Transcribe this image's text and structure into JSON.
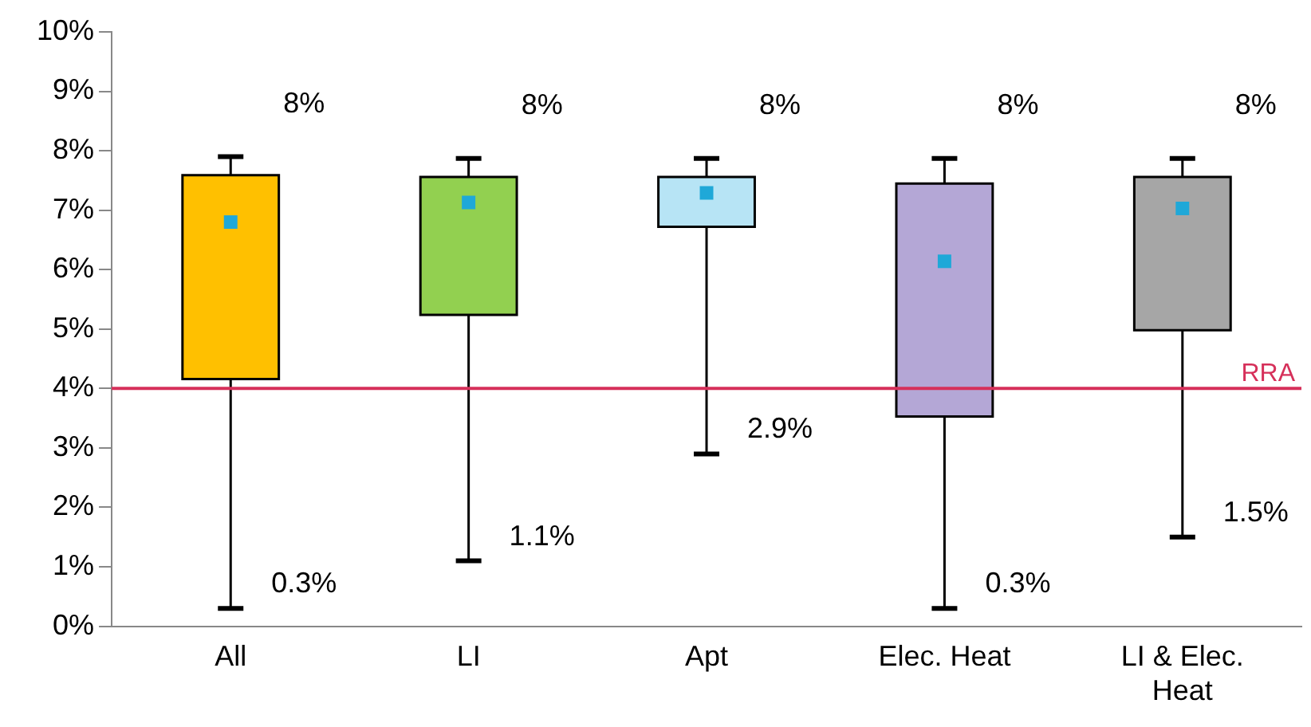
{
  "chart_data": {
    "type": "box",
    "categories": [
      "All",
      "LI",
      "Apt",
      "Elec. Heat",
      "LI & Elec. Heat"
    ],
    "colors": [
      "#ffc000",
      "#92d050",
      "#b7e4f5",
      "#b4a7d6",
      "#a6a6a6"
    ],
    "boxes": [
      {
        "low": 0.3,
        "q1": 4.16,
        "median": null,
        "q3": 7.59,
        "high": 7.9
      },
      {
        "low": 1.1,
        "q1": 5.24,
        "median": null,
        "q3": 7.56,
        "high": 7.87
      },
      {
        "low": 2.9,
        "q1": 6.72,
        "median": null,
        "q3": 7.56,
        "high": 7.87
      },
      {
        "low": 0.3,
        "q1": 3.53,
        "median": null,
        "q3": 7.45,
        "high": 7.87
      },
      {
        "low": 1.5,
        "q1": 4.98,
        "median": null,
        "q3": 7.56,
        "high": 7.87
      }
    ],
    "series": [
      {
        "type": "scatter",
        "color": "#1fa8d8",
        "x": [
          "All",
          "LI",
          "Apt",
          "Elec. Heat",
          "LI & Elec. Heat"
        ],
        "values": [
          6.8,
          7.13,
          7.29,
          6.14,
          7.03
        ]
      }
    ],
    "marker": "square",
    "ylim": [
      0,
      10
    ],
    "yticks": [
      {
        "value": 0,
        "label": "0%"
      },
      {
        "value": 1,
        "label": "1%"
      },
      {
        "value": 2,
        "label": "2%"
      },
      {
        "value": 3,
        "label": "3%"
      },
      {
        "value": 4,
        "label": "4%"
      },
      {
        "value": 5,
        "label": "5%"
      },
      {
        "value": 6,
        "label": "6%"
      },
      {
        "value": 7,
        "label": "7%"
      },
      {
        "value": 8,
        "label": "8%"
      },
      {
        "value": 9,
        "label": "9%"
      },
      {
        "value": 10,
        "label": "10%"
      }
    ],
    "grid": false,
    "legend": false,
    "ref_lines": [
      {
        "axis": "y",
        "value": 4,
        "label": "RRA",
        "color": "#d6305a"
      }
    ],
    "annotations": [
      {
        "text": "8%",
        "x": "All",
        "y": 7.9
      },
      {
        "text": "8%",
        "x": "LI",
        "y": 7.87
      },
      {
        "text": "8%",
        "x": "Apt",
        "y": 7.87
      },
      {
        "text": "8%",
        "x": "Elec. Heat",
        "y": 7.87
      },
      {
        "text": "8%",
        "x": "LI & Elec. Heat",
        "y": 7.87
      },
      {
        "text": "0.3%",
        "x": "All",
        "y": 0.3
      },
      {
        "text": "1.1%",
        "x": "LI",
        "y": 1.1
      },
      {
        "text": "2.9%",
        "x": "Apt",
        "y": 2.9
      },
      {
        "text": "0.3%",
        "x": "Elec. Heat",
        "y": 0.3
      },
      {
        "text": "1.5%",
        "x": "LI & Elec. Heat",
        "y": 1.5
      }
    ]
  }
}
